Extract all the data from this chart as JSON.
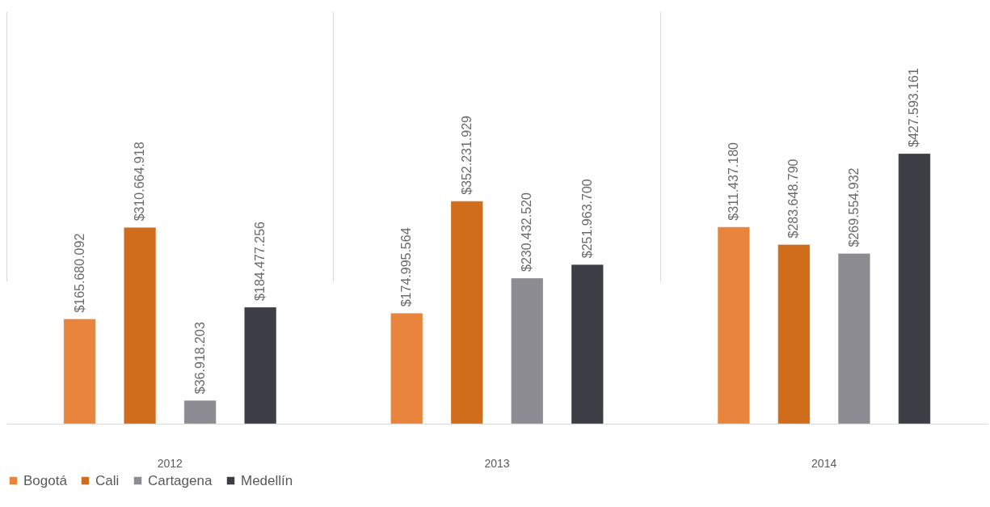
{
  "chart_data": {
    "type": "bar",
    "categories": [
      "2012",
      "2013",
      "2014"
    ],
    "series": [
      {
        "name": "Bogotá",
        "color": "#e8843c",
        "values": [
          165680092,
          174995564,
          311437180
        ],
        "value_labels": [
          "$165.680.092",
          "$174.995.564",
          "$311.437.180"
        ]
      },
      {
        "name": "Cali",
        "color": "#cf6d1c",
        "values": [
          310664918,
          352231929,
          283648790
        ],
        "value_labels": [
          "$310.664.918",
          "$352.231.929",
          "$283.648.790"
        ]
      },
      {
        "name": "Cartagena",
        "color": "#8c8c92",
        "values": [
          36918203,
          230432520,
          269554932
        ],
        "value_labels": [
          "$36.918.203",
          "$230.432.520",
          "$269.554.932"
        ]
      },
      {
        "name": "Medellín",
        "color": "#3b3e44",
        "values": [
          184477256,
          251963700,
          427593161
        ],
        "value_labels": [
          "$184.477.256",
          "$251.963.700",
          "$427.593.161"
        ]
      }
    ],
    "grid": "x",
    "legend": "bottom"
  }
}
